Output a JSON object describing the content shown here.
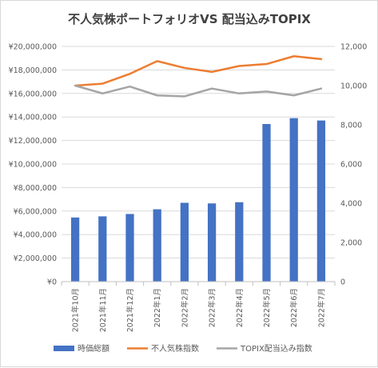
{
  "chart_data": {
    "type": "bar",
    "title": "不人気株ポートフォリオVS 配当込みTOPIX",
    "categories": [
      "2021年10月",
      "2021年11月",
      "2021年12月",
      "2022年1月",
      "2022年2月",
      "2022年3月",
      "2022年4月",
      "2022年5月",
      "2022年6月",
      "2022年7月"
    ],
    "series": [
      {
        "name": "時価総額",
        "type": "bar",
        "axis": "left",
        "color": "#4472c4",
        "values": [
          5450000,
          5550000,
          5750000,
          6150000,
          6700000,
          6650000,
          6750000,
          13400000,
          13900000,
          13700000
        ]
      },
      {
        "name": "不人気株指数",
        "type": "line",
        "axis": "right",
        "color": "#ed7d31",
        "values": [
          10000,
          10100,
          10600,
          11250,
          10900,
          10700,
          11000,
          11100,
          11500,
          11350
        ]
      },
      {
        "name": "TOPIX配当込み指数",
        "type": "line",
        "axis": "right",
        "color": "#a5a5a5",
        "values": [
          10000,
          9600,
          9950,
          9500,
          9450,
          9850,
          9600,
          9700,
          9500,
          9850
        ]
      }
    ],
    "y_left": {
      "min": 0,
      "max": 20000000,
      "step": 2000000,
      "tick_labels": [
        "¥0",
        "¥2,000,000",
        "¥4,000,000",
        "¥6,000,000",
        "¥8,000,000",
        "¥10,000,000",
        "¥12,000,000",
        "¥14,000,000",
        "¥16,000,000",
        "¥18,000,000",
        "¥20,000,000"
      ]
    },
    "y_right": {
      "min": 0,
      "max": 12000,
      "step": 2000,
      "tick_labels": [
        "0",
        "2,000",
        "4,000",
        "6,000",
        "8,000",
        "10,000",
        "12,000"
      ]
    },
    "grid": true,
    "legend_position": "bottom"
  }
}
